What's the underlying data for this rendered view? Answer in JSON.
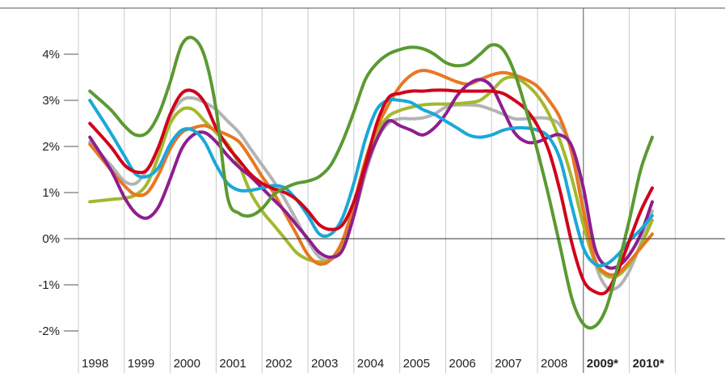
{
  "chart_data": {
    "type": "line",
    "title": "",
    "xlabel": "",
    "ylabel": "",
    "ylim": [
      -2.5,
      5.0
    ],
    "xlim": [
      1998,
      2011
    ],
    "grid": true,
    "legend": "none",
    "y_ticks": [
      {
        "value": 4,
        "label": "4%"
      },
      {
        "value": 3,
        "label": "3%"
      },
      {
        "value": 2,
        "label": "2%"
      },
      {
        "value": 1,
        "label": "1%"
      },
      {
        "value": 0,
        "label": "0%"
      },
      {
        "value": -1,
        "label": "-1%"
      },
      {
        "value": -2,
        "label": "-2%"
      }
    ],
    "x_ticks": [
      {
        "value": 1998,
        "label": "1998",
        "bold": false
      },
      {
        "value": 1999,
        "label": "1999",
        "bold": false
      },
      {
        "value": 2000,
        "label": "2000",
        "bold": false
      },
      {
        "value": 2001,
        "label": "2001",
        "bold": false
      },
      {
        "value": 2002,
        "label": "2002",
        "bold": false
      },
      {
        "value": 2003,
        "label": "2003",
        "bold": false
      },
      {
        "value": 2004,
        "label": "2004",
        "bold": false
      },
      {
        "value": 2005,
        "label": "2005",
        "bold": false
      },
      {
        "value": 2006,
        "label": "2006",
        "bold": false
      },
      {
        "value": 2007,
        "label": "2007",
        "bold": false
      },
      {
        "value": 2008,
        "label": "2008",
        "bold": false
      },
      {
        "value": 2009,
        "label": "2009*",
        "bold": true
      },
      {
        "value": 2010,
        "label": "2010*",
        "bold": true
      }
    ],
    "forecast_start": 2009,
    "series": [
      {
        "color": "#5a9a32",
        "x": [
          1998.25,
          1998.7,
          1999.0,
          1999.25,
          1999.5,
          1999.75,
          2000.0,
          2000.25,
          2000.5,
          2000.75,
          2001.0,
          2001.25,
          2001.5,
          2001.75,
          2002.0,
          2002.25,
          2002.5,
          2002.75,
          2003.0,
          2003.25,
          2003.5,
          2003.75,
          2004.0,
          2004.25,
          2004.5,
          2004.75,
          2005.0,
          2005.25,
          2005.5,
          2005.75,
          2006.0,
          2006.25,
          2006.5,
          2006.75,
          2007.0,
          2007.25,
          2007.5,
          2007.75,
          2008.0,
          2008.25,
          2008.5,
          2008.75,
          2009.0,
          2009.25,
          2009.5,
          2009.75,
          2010.0,
          2010.25,
          2010.5
        ],
        "values": [
          3.2,
          2.8,
          2.45,
          2.25,
          2.3,
          2.7,
          3.4,
          4.2,
          4.35,
          3.95,
          2.8,
          0.9,
          0.55,
          0.5,
          0.65,
          0.95,
          1.1,
          1.2,
          1.25,
          1.35,
          1.6,
          2.1,
          2.75,
          3.45,
          3.8,
          4.0,
          4.1,
          4.15,
          4.12,
          4.0,
          3.82,
          3.75,
          3.8,
          4.0,
          4.2,
          4.1,
          3.6,
          2.8,
          1.9,
          0.9,
          -0.2,
          -1.3,
          -1.85,
          -1.9,
          -1.5,
          -0.6,
          0.4,
          1.5,
          2.2
        ]
      },
      {
        "color": "#d0021b",
        "x": [
          1998.25,
          1998.7,
          1999.0,
          1999.25,
          1999.5,
          1999.75,
          2000.0,
          2000.25,
          2000.5,
          2000.75,
          2001.0,
          2001.25,
          2001.5,
          2001.75,
          2002.0,
          2002.25,
          2002.5,
          2002.75,
          2003.0,
          2003.25,
          2003.5,
          2003.75,
          2004.0,
          2004.25,
          2004.5,
          2004.75,
          2005.0,
          2005.25,
          2005.5,
          2005.75,
          2006.0,
          2006.25,
          2006.5,
          2006.75,
          2007.0,
          2007.25,
          2007.5,
          2007.75,
          2008.0,
          2008.25,
          2008.5,
          2008.75,
          2009.0,
          2009.25,
          2009.5,
          2009.75,
          2010.0,
          2010.25,
          2010.5
        ],
        "values": [
          2.5,
          2.0,
          1.6,
          1.45,
          1.5,
          2.0,
          2.7,
          3.15,
          3.2,
          2.95,
          2.4,
          2.0,
          1.7,
          1.4,
          1.2,
          1.08,
          1.0,
          0.85,
          0.6,
          0.3,
          0.2,
          0.3,
          0.8,
          1.6,
          2.5,
          3.05,
          3.15,
          3.2,
          3.2,
          3.22,
          3.22,
          3.2,
          3.2,
          3.2,
          3.2,
          3.15,
          3.0,
          2.8,
          2.45,
          1.9,
          1.0,
          -0.1,
          -0.9,
          -1.15,
          -1.15,
          -0.7,
          -0.05,
          0.6,
          1.1
        ]
      },
      {
        "color": "#1aa8d8",
        "x": [
          1998.25,
          1998.7,
          1999.0,
          1999.25,
          1999.5,
          1999.75,
          2000.0,
          2000.25,
          2000.5,
          2000.75,
          2001.0,
          2001.25,
          2001.5,
          2001.75,
          2002.0,
          2002.25,
          2002.5,
          2002.75,
          2003.0,
          2003.25,
          2003.5,
          2003.75,
          2004.0,
          2004.25,
          2004.5,
          2004.75,
          2005.0,
          2005.25,
          2005.5,
          2005.75,
          2006.0,
          2006.25,
          2006.5,
          2006.75,
          2007.0,
          2007.25,
          2007.5,
          2007.75,
          2008.0,
          2008.25,
          2008.5,
          2008.75,
          2009.0,
          2009.25,
          2009.5,
          2009.75,
          2010.0,
          2010.25,
          2010.5
        ],
        "values": [
          3.0,
          2.3,
          1.8,
          1.4,
          1.35,
          1.55,
          2.05,
          2.35,
          2.35,
          2.1,
          1.6,
          1.2,
          1.05,
          1.05,
          1.1,
          1.15,
          1.1,
          0.85,
          0.5,
          0.1,
          0.1,
          0.45,
          1.2,
          2.15,
          2.8,
          3.0,
          3.0,
          2.95,
          2.8,
          2.7,
          2.55,
          2.4,
          2.25,
          2.2,
          2.25,
          2.35,
          2.4,
          2.4,
          2.35,
          2.2,
          1.7,
          0.7,
          -0.2,
          -0.55,
          -0.55,
          -0.35,
          -0.05,
          0.2,
          0.5
        ]
      },
      {
        "color": "#8e1e8e",
        "x": [
          1998.25,
          1998.7,
          1999.0,
          1999.25,
          1999.5,
          1999.75,
          2000.0,
          2000.25,
          2000.5,
          2000.75,
          2001.0,
          2001.25,
          2001.5,
          2001.75,
          2002.0,
          2002.25,
          2002.5,
          2002.75,
          2003.0,
          2003.25,
          2003.5,
          2003.75,
          2004.0,
          2004.25,
          2004.5,
          2004.75,
          2005.0,
          2005.25,
          2005.5,
          2005.75,
          2006.0,
          2006.25,
          2006.5,
          2006.75,
          2007.0,
          2007.25,
          2007.5,
          2007.75,
          2008.0,
          2008.25,
          2008.5,
          2008.75,
          2009.0,
          2009.25,
          2009.5,
          2009.75,
          2010.0,
          2010.25,
          2010.5
        ],
        "values": [
          2.2,
          1.5,
          0.9,
          0.55,
          0.45,
          0.7,
          1.3,
          1.95,
          2.25,
          2.3,
          2.1,
          1.8,
          1.55,
          1.35,
          1.1,
          0.85,
          0.6,
          0.3,
          0.0,
          -0.3,
          -0.4,
          -0.25,
          0.5,
          1.5,
          2.15,
          2.55,
          2.45,
          2.35,
          2.25,
          2.4,
          2.7,
          3.1,
          3.35,
          3.45,
          3.3,
          2.8,
          2.3,
          2.1,
          2.1,
          2.2,
          2.25,
          2.0,
          1.1,
          -0.2,
          -0.6,
          -0.6,
          -0.35,
          0.1,
          0.8
        ]
      },
      {
        "color": "#e87722",
        "x": [
          1998.25,
          1998.7,
          1999.0,
          1999.25,
          1999.5,
          1999.75,
          2000.0,
          2000.25,
          2000.5,
          2000.75,
          2001.0,
          2001.25,
          2001.5,
          2001.75,
          2002.0,
          2002.25,
          2002.5,
          2002.75,
          2003.0,
          2003.25,
          2003.5,
          2003.75,
          2004.0,
          2004.25,
          2004.5,
          2004.75,
          2005.0,
          2005.25,
          2005.5,
          2005.75,
          2006.0,
          2006.25,
          2006.5,
          2006.75,
          2007.0,
          2007.25,
          2007.5,
          2007.75,
          2008.0,
          2008.25,
          2008.5,
          2008.75,
          2009.0,
          2009.25,
          2009.5,
          2009.75,
          2010.0,
          2010.25,
          2010.5
        ],
        "values": [
          2.05,
          1.5,
          1.15,
          0.95,
          1.0,
          1.4,
          1.95,
          2.3,
          2.4,
          2.45,
          2.35,
          2.25,
          2.1,
          1.75,
          1.35,
          1.0,
          0.55,
          0.1,
          -0.35,
          -0.55,
          -0.45,
          -0.05,
          0.75,
          1.7,
          2.4,
          2.9,
          3.3,
          3.55,
          3.65,
          3.6,
          3.5,
          3.4,
          3.35,
          3.45,
          3.55,
          3.6,
          3.55,
          3.45,
          3.3,
          3.0,
          2.6,
          1.85,
          0.6,
          -0.45,
          -0.75,
          -0.75,
          -0.5,
          -0.2,
          0.1
        ]
      },
      {
        "color": "#a3b82e",
        "x": [
          1998.25,
          1998.7,
          1999.0,
          1999.25,
          1999.5,
          1999.75,
          2000.0,
          2000.25,
          2000.5,
          2000.75,
          2001.0,
          2001.25,
          2001.5,
          2001.75,
          2002.0,
          2002.25,
          2002.5,
          2002.75,
          2003.0,
          2003.25,
          2003.5,
          2003.75,
          2004.0,
          2004.25,
          2004.5,
          2004.75,
          2005.0,
          2005.25,
          2005.5,
          2005.75,
          2006.0,
          2006.25,
          2006.5,
          2006.75,
          2007.0,
          2007.25,
          2007.5,
          2007.75,
          2008.0,
          2008.25,
          2008.5,
          2008.75,
          2009.0,
          2009.25,
          2009.5,
          2009.75,
          2010.0,
          2010.25,
          2010.5
        ],
        "values": [
          0.8,
          0.85,
          0.88,
          0.95,
          1.2,
          1.8,
          2.5,
          2.8,
          2.8,
          2.55,
          2.3,
          2.05,
          1.6,
          1.0,
          0.6,
          0.3,
          0.0,
          -0.3,
          -0.45,
          -0.5,
          -0.45,
          -0.1,
          0.7,
          1.6,
          2.3,
          2.65,
          2.78,
          2.85,
          2.9,
          2.92,
          2.92,
          2.93,
          2.95,
          3.0,
          3.2,
          3.45,
          3.5,
          3.35,
          3.1,
          2.7,
          2.1,
          1.3,
          0.3,
          -0.5,
          -0.8,
          -0.8,
          -0.55,
          -0.15,
          0.4
        ]
      },
      {
        "color": "#b3b3b3",
        "x": [
          1998.25,
          1998.7,
          1999.0,
          1999.25,
          1999.5,
          1999.75,
          2000.0,
          2000.25,
          2000.5,
          2000.75,
          2001.0,
          2001.25,
          2001.5,
          2001.75,
          2002.0,
          2002.25,
          2002.5,
          2002.75,
          2003.0,
          2003.25,
          2003.5,
          2003.75,
          2004.0,
          2004.25,
          2004.5,
          2004.75,
          2005.0,
          2005.25,
          2005.5,
          2005.75,
          2006.0,
          2006.25,
          2006.5,
          2006.75,
          2007.0,
          2007.25,
          2007.5,
          2007.75,
          2008.0,
          2008.25,
          2008.5,
          2008.75,
          2009.0,
          2009.25,
          2009.5,
          2009.75,
          2010.0,
          2010.25,
          2010.5
        ],
        "values": [
          2.1,
          1.6,
          1.25,
          1.2,
          1.5,
          2.0,
          2.65,
          3.0,
          3.05,
          2.95,
          2.8,
          2.55,
          2.3,
          1.95,
          1.6,
          1.25,
          0.85,
          0.4,
          -0.05,
          -0.4,
          -0.45,
          -0.2,
          0.5,
          1.4,
          2.15,
          2.5,
          2.6,
          2.6,
          2.62,
          2.7,
          2.85,
          2.9,
          2.9,
          2.88,
          2.8,
          2.7,
          2.6,
          2.6,
          2.62,
          2.6,
          2.45,
          1.9,
          0.7,
          -0.5,
          -1.05,
          -1.05,
          -0.7,
          -0.1,
          0.6
        ]
      }
    ]
  }
}
